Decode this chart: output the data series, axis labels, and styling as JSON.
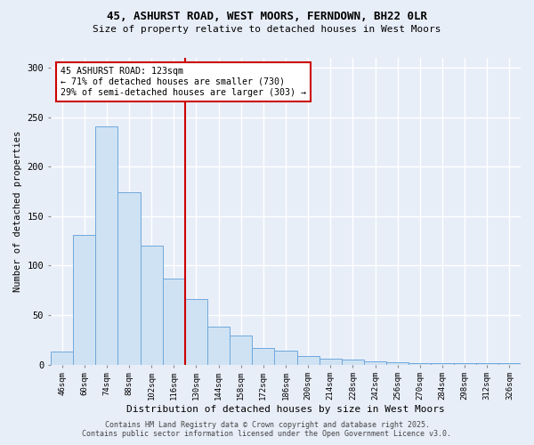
{
  "title_line1": "45, ASHURST ROAD, WEST MOORS, FERNDOWN, BH22 0LR",
  "title_line2": "Size of property relative to detached houses in West Moors",
  "xlabel": "Distribution of detached houses by size in West Moors",
  "ylabel": "Number of detached properties",
  "categories": [
    "46sqm",
    "60sqm",
    "74sqm",
    "88sqm",
    "102sqm",
    "116sqm",
    "130sqm",
    "144sqm",
    "158sqm",
    "172sqm",
    "186sqm",
    "200sqm",
    "214sqm",
    "228sqm",
    "242sqm",
    "256sqm",
    "270sqm",
    "284sqm",
    "298sqm",
    "312sqm",
    "326sqm"
  ],
  "values": [
    13,
    131,
    241,
    174,
    120,
    87,
    66,
    38,
    29,
    17,
    14,
    9,
    6,
    5,
    3,
    2,
    1,
    1,
    1,
    1,
    1
  ],
  "bar_color": "#cfe2f3",
  "bar_edge_color": "#6fa8dc",
  "annotation_title": "45 ASHURST ROAD: 123sqm",
  "annotation_line2": "← 71% of detached houses are smaller (730)",
  "annotation_line3": "29% of semi-detached houses are larger (303) →",
  "background_color": "#e8eef8",
  "grid_color": "#ffffff",
  "footer_line1": "Contains HM Land Registry data © Crown copyright and database right 2025.",
  "footer_line2": "Contains public sector information licensed under the Open Government Licence v3.0.",
  "ylim": [
    0,
    310
  ],
  "yticks": [
    0,
    50,
    100,
    150,
    200,
    250,
    300
  ]
}
